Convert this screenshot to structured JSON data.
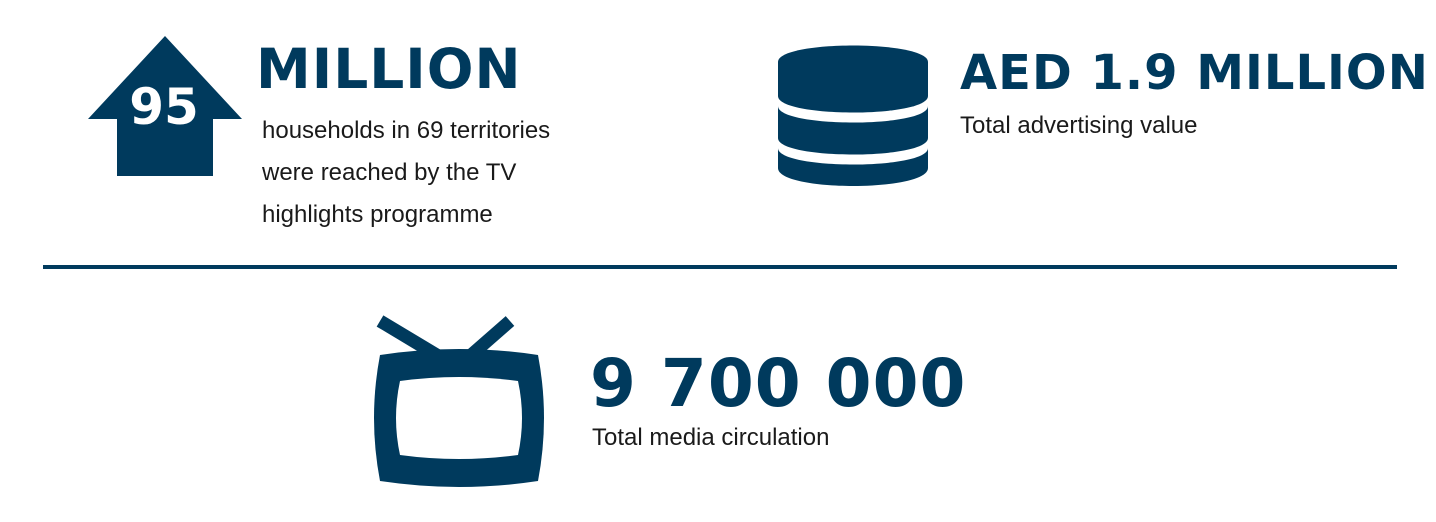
{
  "colors": {
    "primary": "#003a5d",
    "text": "#1a1a1a",
    "background": "#ffffff"
  },
  "households": {
    "icon": "house-icon",
    "icon_number": "95",
    "value": "MILLION",
    "description_lines": [
      "households in 69 territories",
      "were reached by the TV",
      "highlights programme"
    ]
  },
  "advertising": {
    "icon": "database-coins-icon",
    "value": "AED 1.9 MILLION",
    "description": "Total advertising value"
  },
  "media": {
    "icon": "tv-icon",
    "value": "9 700 000",
    "description": "Total media circulation"
  }
}
